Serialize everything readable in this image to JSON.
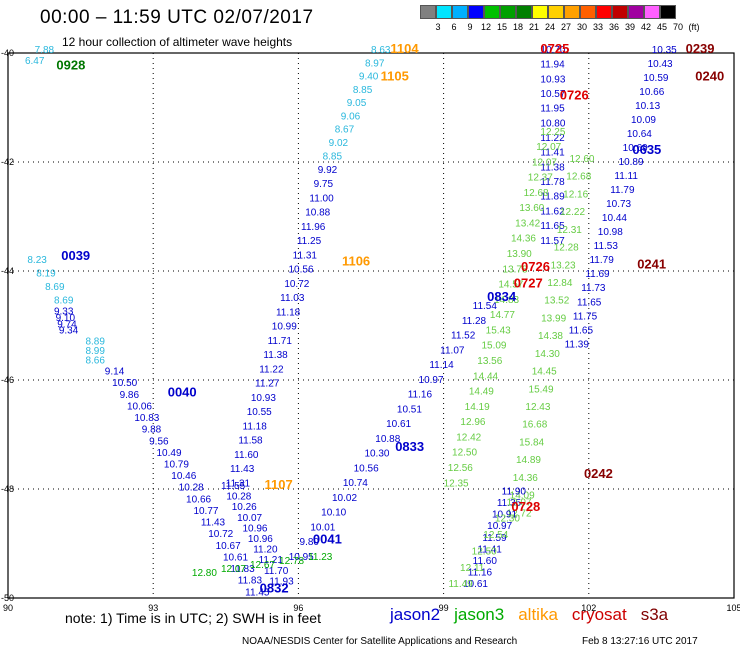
{
  "header": {
    "title": "00:00 – 11:59 UTC 02/07/2017",
    "subtitle": "12 hour collection of altimeter wave heights"
  },
  "color_scale": {
    "unit_label": "(ft)",
    "ticks": [
      "3",
      "6",
      "9",
      "12",
      "15",
      "18",
      "21",
      "24",
      "27",
      "30",
      "33",
      "36",
      "39",
      "42",
      "45",
      "70"
    ],
    "colors": [
      "#808080",
      "#00e5ff",
      "#00b0ff",
      "#0000ff",
      "#00c000",
      "#00a000",
      "#008000",
      "#ffff00",
      "#ffd000",
      "#ffa000",
      "#ff6000",
      "#ff0000",
      "#c00000",
      "#a000a0",
      "#ff60ff",
      "#000000"
    ]
  },
  "footer": {
    "note": "note:  1) Time is in UTC;  2) SWH is in feet",
    "satellites": [
      {
        "name": "jason2",
        "color": "#0000cc"
      },
      {
        "name": "jason3",
        "color": "#00aa00"
      },
      {
        "name": "altika",
        "color": "#ff9900"
      },
      {
        "name": "cryosat",
        "color": "#cc0000"
      },
      {
        "name": "s3a",
        "color": "#800000"
      }
    ],
    "credit": "NOAA/NESDIS Center for Satellite Applications and Research",
    "timestamp": "Feb  8 13:27:16 UTC 2017"
  },
  "map": {
    "lon_ticks": [
      "90",
      "93",
      "96",
      "99",
      "102",
      "105"
    ],
    "lat_ticks": [
      "-40",
      "-42",
      "-44",
      "-46",
      "-48",
      "-50"
    ],
    "x_range": [
      90,
      105
    ],
    "y_range": [
      -50,
      -40
    ],
    "pass_labels": [
      {
        "text": "0928",
        "x": 91.0,
        "y": -40.3,
        "color": "#007700"
      },
      {
        "text": "1104",
        "x": 97.9,
        "y": -40.0,
        "color": "#ff9900"
      },
      {
        "text": "1105",
        "x": 97.7,
        "y": -40.5,
        "color": "#ff9900"
      },
      {
        "text": "0725",
        "x": 101.0,
        "y": -40.0,
        "color": "#dd0000"
      },
      {
        "text": "0726",
        "x": 101.4,
        "y": -40.85,
        "color": "#dd0000"
      },
      {
        "text": "0239",
        "x": 104.0,
        "y": -40.0,
        "color": "#880000"
      },
      {
        "text": "0240",
        "x": 104.2,
        "y": -40.5,
        "color": "#880000"
      },
      {
        "text": "0635",
        "x": 102.9,
        "y": -41.85,
        "color": "#0000cc"
      },
      {
        "text": "0039",
        "x": 91.1,
        "y": -43.8,
        "color": "#0000cc"
      },
      {
        "text": "1106",
        "x": 96.9,
        "y": -43.9,
        "color": "#ff9900"
      },
      {
        "text": "0726",
        "x": 100.6,
        "y": -44.0,
        "color": "#dd0000"
      },
      {
        "text": "0241",
        "x": 103.0,
        "y": -43.95,
        "color": "#880000"
      },
      {
        "text": "0727",
        "x": 100.45,
        "y": -44.3,
        "color": "#dd0000"
      },
      {
        "text": "0834",
        "x": 99.9,
        "y": -44.55,
        "color": "#0000cc"
      },
      {
        "text": "0040",
        "x": 93.3,
        "y": -46.3,
        "color": "#0000cc"
      },
      {
        "text": "0833",
        "x": 98.0,
        "y": -47.3,
        "color": "#0000cc"
      },
      {
        "text": "1107",
        "x": 95.3,
        "y": -48.0,
        "color": "#ff9900"
      },
      {
        "text": "0242",
        "x": 101.9,
        "y": -47.8,
        "color": "#880000"
      },
      {
        "text": "0728",
        "x": 100.4,
        "y": -48.4,
        "color": "#dd0000"
      },
      {
        "text": "0041",
        "x": 96.3,
        "y": -49.0,
        "color": "#0000cc"
      },
      {
        "text": "0832",
        "x": 95.2,
        "y": -49.9,
        "color": "#0000cc"
      }
    ],
    "tracks": [
      {
        "name": "pass-0928",
        "color": "#2ab8dd",
        "start": [
          90.55,
          -40.0
        ],
        "end": [
          90.35,
          -40.2
        ],
        "values": [
          "7.88",
          "6.47"
        ]
      },
      {
        "name": "pass-0039",
        "color": "#2ab8dd",
        "start": [
          90.4,
          -43.85
        ],
        "end": [
          90.95,
          -44.6
        ],
        "values": [
          "8.23",
          "8.19",
          "8.69",
          "8.69"
        ]
      },
      {
        "name": "pass-0039b",
        "color": "#0000cc",
        "start": [
          90.95,
          -44.8
        ],
        "end": [
          91.05,
          -45.15
        ],
        "values": [
          "9.33",
          "9.10",
          "9.74",
          "9.34"
        ]
      },
      {
        "name": "pass-0039c",
        "color": "#2ab8dd",
        "start": [
          91.6,
          -45.35
        ],
        "end": [
          91.6,
          -45.7
        ],
        "values": [
          "8.89",
          "8.99",
          "8.66"
        ]
      },
      {
        "name": "pass-0040",
        "color": "#0000cc",
        "start": [
          92.0,
          -45.9
        ],
        "end": [
          94.9,
          -49.95
        ],
        "values": [
          "9.14",
          "10.50",
          "9.86",
          "10.06",
          "10.83",
          "9.88",
          "9.56",
          "10.49",
          "10.79",
          "10.46",
          "10.28",
          "10.66",
          "10.77",
          "11.43",
          "10.72",
          "10.67",
          "10.61",
          "11.83",
          "11.83",
          "11.45"
        ]
      },
      {
        "name": "pass-1104",
        "color": "#2ab8dd",
        "start": [
          97.5,
          -40.0
        ],
        "end": [
          96.5,
          -41.95
        ],
        "values": [
          "8.63",
          "8.97",
          "9.40",
          "8.85",
          "9.05",
          "9.06",
          "8.67",
          "9.02",
          "8.85"
        ]
      },
      {
        "name": "pass-1105",
        "color": "#0000cc",
        "start": [
          96.4,
          -42.2
        ],
        "end": [
          94.5,
          -47.95
        ],
        "values": [
          "9.92",
          "9.75",
          "11.00",
          "10.88",
          "11.96",
          "11.25",
          "11.31",
          "10.56",
          "10.72",
          "11.03",
          "11.18",
          "10.99",
          "11.71",
          "11.38",
          "11.22",
          "11.27",
          "10.93",
          "10.55",
          "11.18",
          "11.58",
          "11.60",
          "11.43",
          "11.31"
        ]
      },
      {
        "name": "pass-1107",
        "color": "#0000cc",
        "start": [
          94.4,
          -48.0
        ],
        "end": [
          95.4,
          -49.75
        ],
        "values": [
          "11.55",
          "10.28",
          "10.26",
          "10.07",
          "10.96",
          "10.96",
          "11.20",
          "11.21",
          "11.70",
          "11.93"
        ]
      },
      {
        "name": "pass-0832",
        "color": "#0000cc",
        "start": [
          95.8,
          -49.3
        ],
        "end": [
          99.6,
          -44.7
        ],
        "values": [
          "10.95",
          "9.80",
          "10.01",
          "10.10",
          "10.02",
          "10.74",
          "10.56",
          "10.30",
          "10.88",
          "10.61",
          "10.51",
          "11.16",
          "10.97",
          "11.14",
          "11.07",
          "11.52",
          "11.28",
          "11.54"
        ]
      },
      {
        "name": "pass-0041",
        "color": "#00aa00",
        "start": [
          93.8,
          -49.6
        ],
        "end": [
          96.2,
          -49.3
        ],
        "values": [
          "12.80",
          "12.07",
          "12.67",
          "12.78",
          "11.23"
        ]
      },
      {
        "name": "pass-0725",
        "color": "#0000cc",
        "start": [
          101.0,
          -40.0
        ],
        "end": [
          101.0,
          -43.5
        ],
        "values": [
          "10.70",
          "11.94",
          "10.93",
          "10.57",
          "11.95",
          "10.80",
          "11.22",
          "11.41",
          "11.38",
          "11.78",
          "11.89",
          "11.62",
          "11.65",
          "11.57"
        ]
      },
      {
        "name": "pass-0726g",
        "color": "#66cc44",
        "start": [
          101.0,
          -41.5
        ],
        "end": [
          99.0,
          -47.95
        ],
        "values": [
          "12.25",
          "12.07",
          "12.07",
          "12.37",
          "12.68",
          "13.60",
          "13.42",
          "14.36",
          "13.90",
          "13.78",
          "14.57",
          "14.83",
          "14.77",
          "15.43",
          "15.09",
          "13.56",
          "14.44",
          "14.49",
          "14.19",
          "12.96",
          "12.42",
          "12.50",
          "12.56",
          "12.35"
        ]
      },
      {
        "name": "pass-0242g",
        "color": "#66cc44",
        "start": [
          101.6,
          -42.0
        ],
        "end": [
          100.3,
          -48.5
        ],
        "values": [
          "12.60",
          "12.68",
          "12.16",
          "12.22",
          "12.31",
          "12.28",
          "13.23",
          "12.84",
          "13.52",
          "13.99",
          "14.38",
          "14.30",
          "14.45",
          "15.49",
          "12.43",
          "16.68",
          "15.84",
          "14.89",
          "14.36",
          "14.09",
          "12.72"
        ]
      },
      {
        "name": "pass-0239b",
        "color": "#0000cc",
        "start": [
          103.3,
          -40.0
        ],
        "end": [
          101.5,
          -45.4
        ],
        "values": [
          "10.35",
          "10.43",
          "10.59",
          "10.66",
          "10.13",
          "10.09",
          "10.64",
          "10.69",
          "10.89",
          "11.11",
          "11.79",
          "10.73",
          "10.44",
          "10.98",
          "11.53",
          "11.79",
          "11.69",
          "11.73",
          "11.65",
          "11.75",
          "11.65",
          "11.39"
        ]
      },
      {
        "name": "pass-0728",
        "color": "#0000cc",
        "start": [
          100.2,
          -48.1
        ],
        "end": [
          99.4,
          -49.8
        ],
        "values": [
          "11.90",
          "11.35",
          "10.91",
          "10.97",
          "11.59",
          "11.41",
          "11.60",
          "11.16",
          "10.61"
        ]
      },
      {
        "name": "pass-0728g",
        "color": "#66cc44",
        "start": [
          100.3,
          -48.3
        ],
        "end": [
          99.1,
          -49.8
        ],
        "values": [
          "12.07",
          "12.30",
          "12.54",
          "12.50",
          "12.11",
          "11.49"
        ]
      }
    ]
  }
}
